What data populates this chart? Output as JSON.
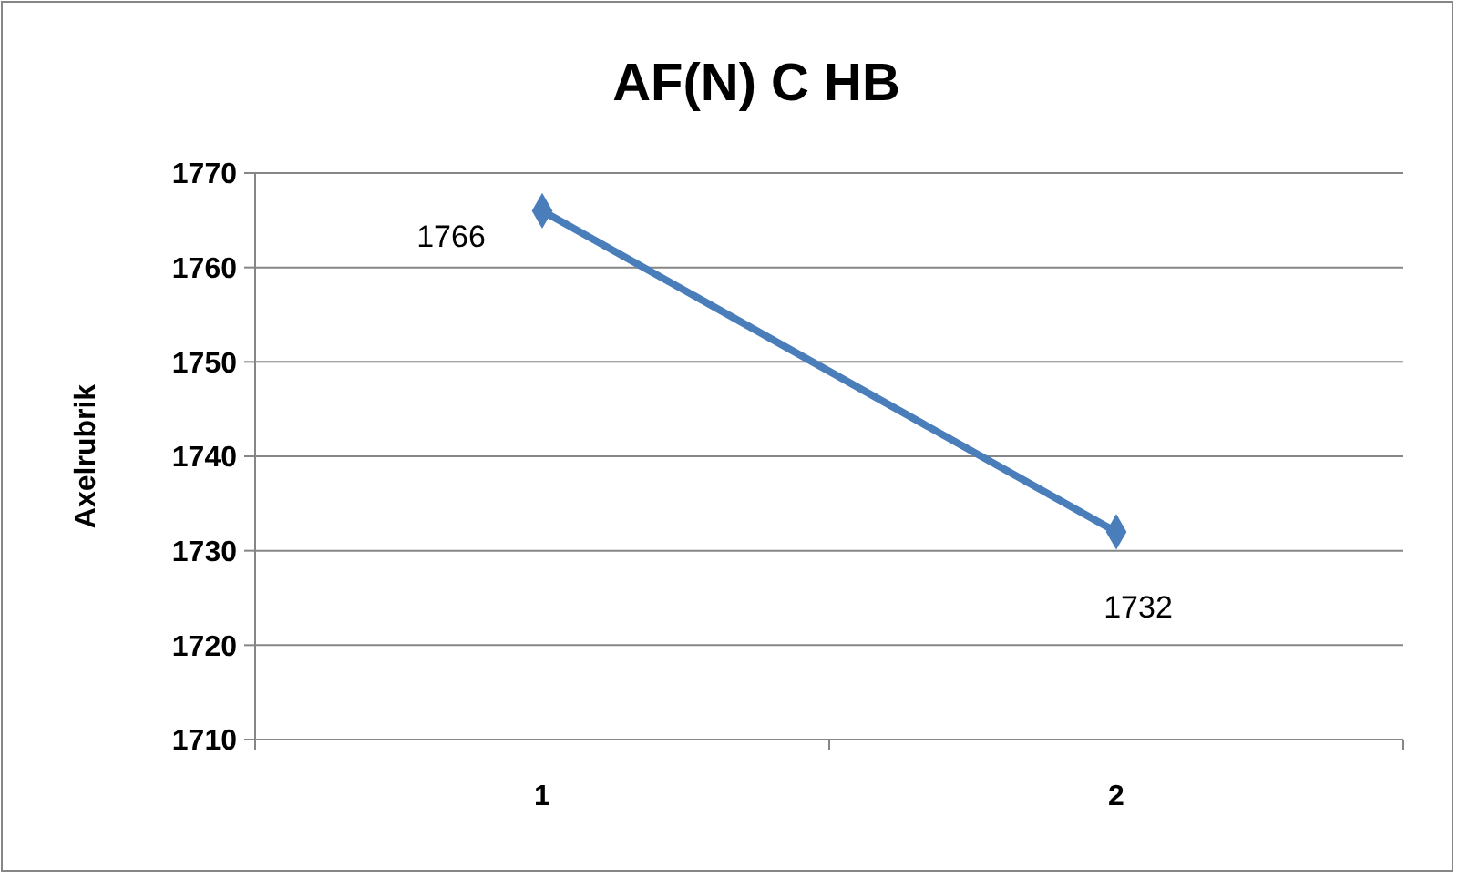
{
  "chart_data": {
    "type": "line",
    "title": "AF(N) C HB",
    "ylabel": "Axelrubrik",
    "categories": [
      "1",
      "2"
    ],
    "series": [
      {
        "color": "#4a7ebb",
        "values": [
          1766,
          1732
        ]
      }
    ],
    "ylim": [
      1710,
      1770
    ],
    "yticks": [
      1710,
      1720,
      1730,
      1740,
      1750,
      1760,
      1770
    ],
    "grid": "y",
    "marker": "diamond",
    "data_labels": true
  }
}
